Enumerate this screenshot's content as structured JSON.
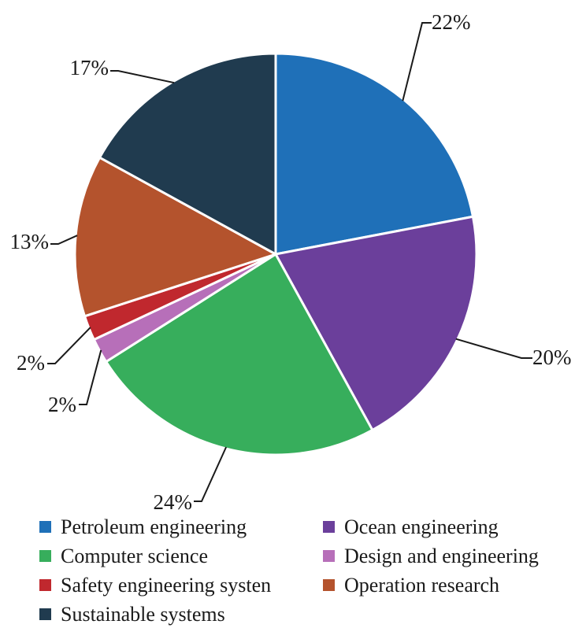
{
  "chart_data": {
    "type": "pie",
    "start_angle_deg": 0,
    "direction": "clockwise",
    "slices": [
      {
        "label": "Petroleum engineering",
        "value": 22,
        "text": "22%",
        "color": "#1f70b8"
      },
      {
        "label": "Ocean engineering",
        "value": 20,
        "text": "20%",
        "color": "#6b3f9b"
      },
      {
        "label": "Computer science",
        "value": 24,
        "text": "24%",
        "color": "#37ae5c"
      },
      {
        "label": "Design and engineering",
        "value": 2,
        "text": "2%",
        "color": "#b76fb9"
      },
      {
        "label": "Safety engineering systen",
        "value": 2,
        "text": "2%",
        "color": "#c0282e"
      },
      {
        "label": "Operation research",
        "value": 13,
        "text": "13%",
        "color": "#b4532d"
      },
      {
        "label": "Sustainable systems",
        "value": 17,
        "text": "17%",
        "color": "#203b4f"
      }
    ],
    "legend": {
      "position": "bottom",
      "columns": 2
    }
  }
}
